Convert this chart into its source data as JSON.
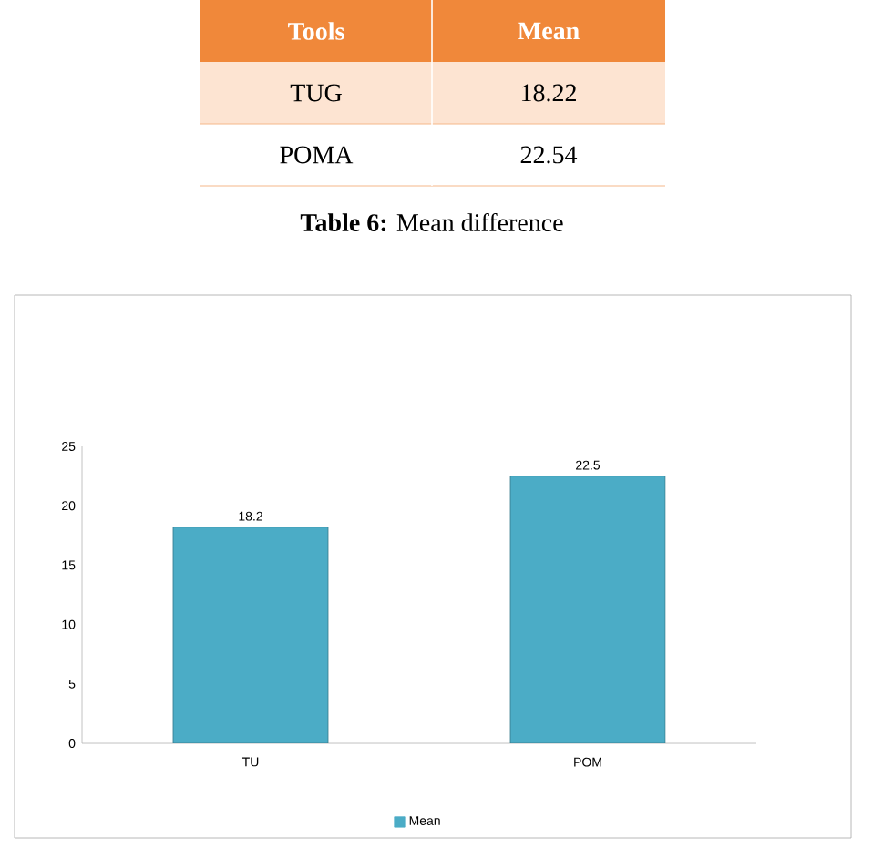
{
  "chart_data": [
    {
      "type": "other",
      "annotations": [
        "Tools",
        "Mean",
        "TUG",
        "18.22",
        "POMA",
        "22.54",
        "**Table 6:** Mean difference"
      ]
    },
    {
      "type": "bar",
      "categories": [
        "TU",
        "POM"
      ],
      "series": [
        {
          "name": "Mean",
          "color": "#4bacc6",
          "values": [
            18.2,
            22.5
          ]
        }
      ],
      "ylim": [
        0,
        25
      ],
      "yticks": [
        0,
        5,
        10,
        15,
        20,
        25
      ],
      "data_labels": true,
      "legend": "bottom"
    }
  ]
}
